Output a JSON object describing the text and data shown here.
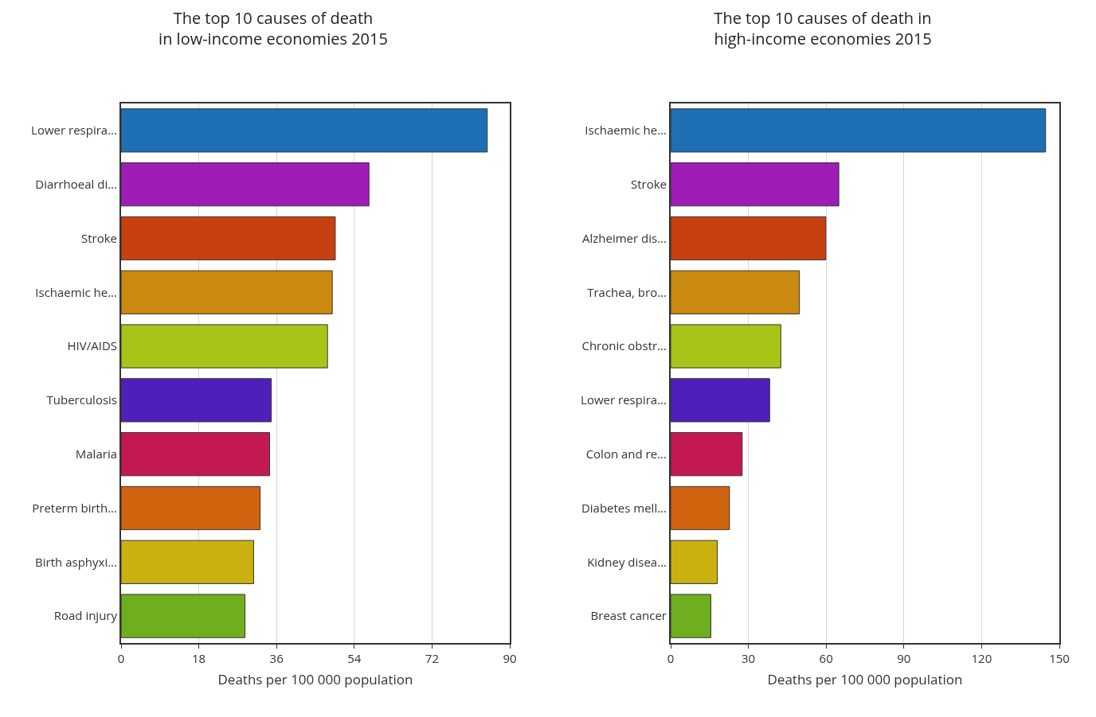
{
  "chart_data": [
    {
      "type": "bar",
      "orientation": "horizontal",
      "title": "The top 10 causes of death in low-income economies 2015",
      "xlabel": "Deaths per 100 000 population",
      "categories": [
        "Lower respira...",
        "Diarrhoeal di...",
        "Stroke",
        "Ischaemic he...",
        "HIV/AIDS",
        "Tuberculosis",
        "Malaria",
        "Preterm birth...",
        "Birth asphyxi...",
        "Road injury"
      ],
      "values": [
        84.8,
        57.4,
        49.6,
        48.9,
        47.8,
        34.8,
        34.4,
        32.2,
        30.7,
        28.7
      ],
      "colors": [
        "#1f6fb5",
        "#a01cb8",
        "#c8400f",
        "#c98a0f",
        "#a9c418",
        "#4e1fba",
        "#c41853",
        "#d0640f",
        "#c9b20f",
        "#6fae1e"
      ],
      "xlim": [
        0,
        90
      ],
      "xticks": [
        0,
        18,
        36,
        54,
        72,
        90
      ],
      "grid": "x"
    },
    {
      "type": "bar",
      "orientation": "horizontal",
      "title": "The top 10 causes of death in high-income economies 2015",
      "xlabel": "Deaths per 100 000 population",
      "categories": [
        "Ischaemic he...",
        "Stroke",
        "Alzheimer dis...",
        "Trachea, bro...",
        "Chronic obstr...",
        "Lower respira...",
        "Colon and re...",
        "Diabetes mell...",
        "Kidney disea...",
        "Breast cancer"
      ],
      "values": [
        144.7,
        64.9,
        59.9,
        49.7,
        42.5,
        38.2,
        27.6,
        22.7,
        18.0,
        15.5
      ],
      "colors": [
        "#1f6fb5",
        "#a01cb8",
        "#c8400f",
        "#c98a0f",
        "#a9c418",
        "#4e1fba",
        "#c41853",
        "#d0640f",
        "#c9b20f",
        "#6fae1e"
      ],
      "xlim": [
        0,
        150
      ],
      "xticks": [
        0,
        30,
        60,
        90,
        120,
        150
      ],
      "grid": "x"
    }
  ]
}
